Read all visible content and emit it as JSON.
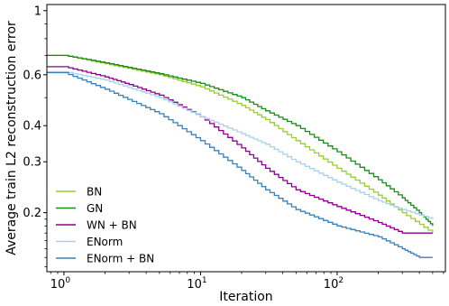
{
  "chart_data": {
    "type": "line",
    "title": "",
    "xlabel": "Iteration",
    "ylabel": "Average train L2 reconstruction error",
    "x_scale": "log",
    "y_scale": "log",
    "xlim": [
      0.75,
      620
    ],
    "ylim": [
      0.125,
      1.05
    ],
    "x_ticks": [
      {
        "value": 1,
        "base": "10",
        "exp": "0"
      },
      {
        "value": 10,
        "base": "10",
        "exp": "1"
      },
      {
        "value": 100,
        "base": "10",
        "exp": "2"
      }
    ],
    "y_ticks": [
      {
        "value": 1,
        "label": "1"
      },
      {
        "value": 0.6,
        "label": "0.6"
      },
      {
        "value": 0.4,
        "label": "0.4"
      },
      {
        "value": 0.3,
        "label": "0.3"
      },
      {
        "value": 0.2,
        "label": "0.2"
      }
    ],
    "grid": false,
    "legend_position": "bottom-left",
    "series": [
      {
        "name": "BN",
        "color": "#9ACD32",
        "points": [
          [
            0.75,
            0.7
          ],
          [
            1,
            0.7
          ],
          [
            2,
            0.655
          ],
          [
            5,
            0.6
          ],
          [
            10,
            0.545
          ],
          [
            20,
            0.47
          ],
          [
            30,
            0.42
          ],
          [
            50,
            0.355
          ],
          [
            100,
            0.285
          ],
          [
            200,
            0.23
          ],
          [
            300,
            0.2
          ],
          [
            500,
            0.17
          ]
        ]
      },
      {
        "name": "GN",
        "color": "#1A8A1A",
        "points": [
          [
            0.75,
            0.7
          ],
          [
            1,
            0.7
          ],
          [
            2,
            0.66
          ],
          [
            5,
            0.605
          ],
          [
            10,
            0.56
          ],
          [
            20,
            0.5
          ],
          [
            30,
            0.45
          ],
          [
            50,
            0.4
          ],
          [
            100,
            0.325
          ],
          [
            200,
            0.26
          ],
          [
            300,
            0.225
          ],
          [
            400,
            0.2
          ],
          [
            500,
            0.18
          ]
        ]
      },
      {
        "name": "WN + BN",
        "color": "#8B008B",
        "points": [
          [
            0.75,
            0.64
          ],
          [
            1,
            0.64
          ],
          [
            2,
            0.59
          ],
          [
            3,
            0.555
          ],
          [
            5,
            0.51
          ],
          [
            10,
            0.43
          ],
          [
            20,
            0.335
          ],
          [
            30,
            0.285
          ],
          [
            50,
            0.24
          ],
          [
            100,
            0.21
          ],
          [
            200,
            0.185
          ],
          [
            300,
            0.17
          ],
          [
            400,
            0.17
          ],
          [
            500,
            0.17
          ]
        ]
      },
      {
        "name": "ENorm",
        "color": "#A6D3EA",
        "points": [
          [
            0.75,
            0.615
          ],
          [
            1,
            0.615
          ],
          [
            2,
            0.575
          ],
          [
            5,
            0.5
          ],
          [
            10,
            0.43
          ],
          [
            20,
            0.375
          ],
          [
            30,
            0.345
          ],
          [
            50,
            0.3
          ],
          [
            100,
            0.255
          ],
          [
            200,
            0.22
          ],
          [
            300,
            0.205
          ],
          [
            500,
            0.19
          ]
        ]
      },
      {
        "name": "ENorm + BN",
        "color": "#3A80B8",
        "points": [
          [
            0.75,
            0.61
          ],
          [
            1,
            0.61
          ],
          [
            2,
            0.535
          ],
          [
            5,
            0.44
          ],
          [
            10,
            0.355
          ],
          [
            20,
            0.28
          ],
          [
            30,
            0.24
          ],
          [
            50,
            0.205
          ],
          [
            100,
            0.18
          ],
          [
            200,
            0.165
          ],
          [
            300,
            0.15
          ],
          [
            400,
            0.14
          ],
          [
            500,
            0.14
          ]
        ]
      }
    ]
  }
}
